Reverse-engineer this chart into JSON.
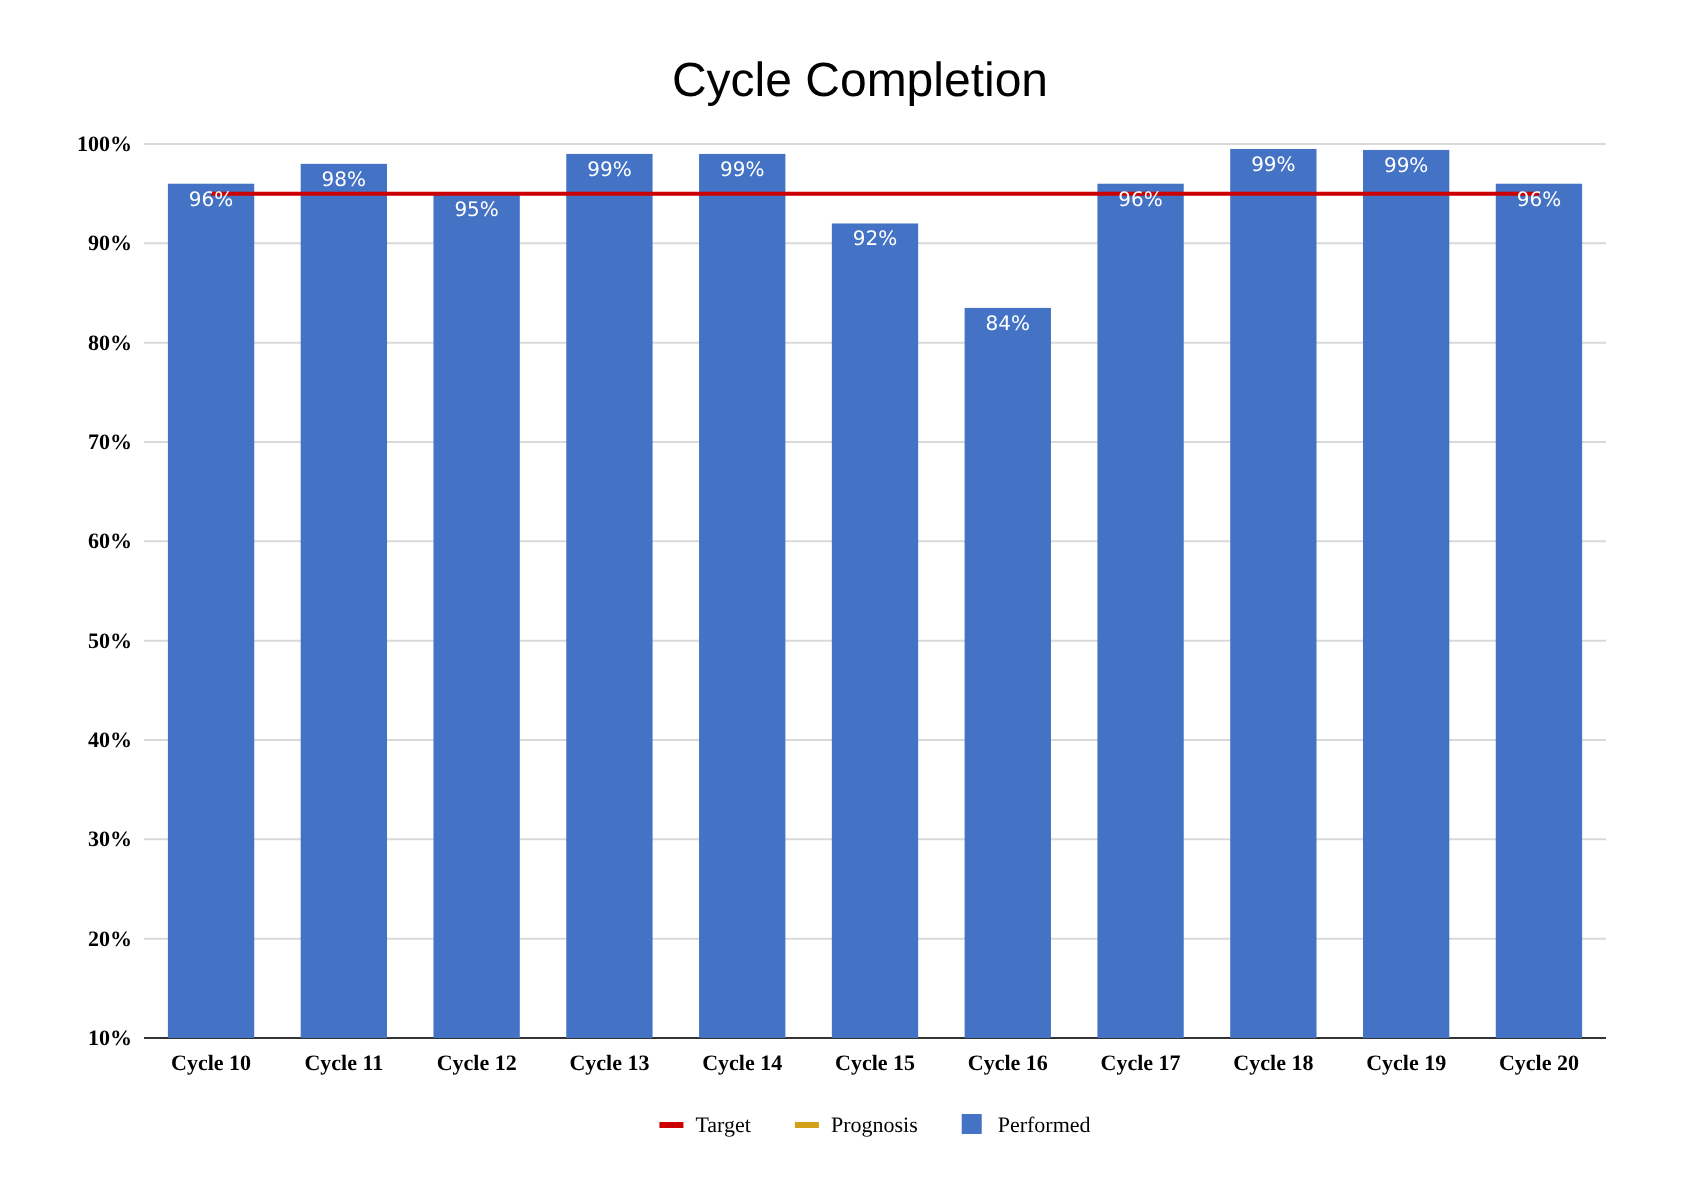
{
  "chart_data": {
    "type": "bar",
    "title": "Cycle Completion",
    "categories": [
      "Cycle 10",
      "Cycle 11",
      "Cycle 12",
      "Cycle 13",
      "Cycle 14",
      "Cycle 15",
      "Cycle 16",
      "Cycle 17",
      "Cycle 18",
      "Cycle 19",
      "Cycle 20"
    ],
    "series": [
      {
        "name": "Target",
        "type": "line",
        "color": "#cc0000",
        "values": [
          95,
          95,
          95,
          95,
          95,
          95,
          95,
          95,
          95,
          95,
          95
        ]
      },
      {
        "name": "Prognosis",
        "type": "line",
        "color": "#d4a017",
        "values": [
          null,
          null,
          null,
          null,
          null,
          null,
          null,
          null,
          null,
          null,
          null
        ]
      },
      {
        "name": "Performed",
        "color": "#4472c4",
        "values": [
          96,
          98,
          95,
          99,
          99,
          92,
          83.5,
          96,
          99.5,
          99.4,
          96
        ],
        "value_labels": [
          "96%",
          "98%",
          "95%",
          "99%",
          "99%",
          "92%",
          "84%",
          "96%",
          "99%",
          "99%",
          "96%"
        ]
      }
    ],
    "ylim": [
      10,
      100
    ],
    "yticks": [
      {
        "value": 10,
        "label": "10%"
      },
      {
        "value": 20,
        "label": "20%"
      },
      {
        "value": 30,
        "label": "30%"
      },
      {
        "value": 40,
        "label": "40%"
      },
      {
        "value": 50,
        "label": "50%"
      },
      {
        "value": 60,
        "label": "60%"
      },
      {
        "value": 70,
        "label": "70%"
      },
      {
        "value": 80,
        "label": "80%"
      },
      {
        "value": 90,
        "label": "90%"
      },
      {
        "value": 100,
        "label": "100%"
      }
    ],
    "grid": "y",
    "legend": "bottom"
  }
}
